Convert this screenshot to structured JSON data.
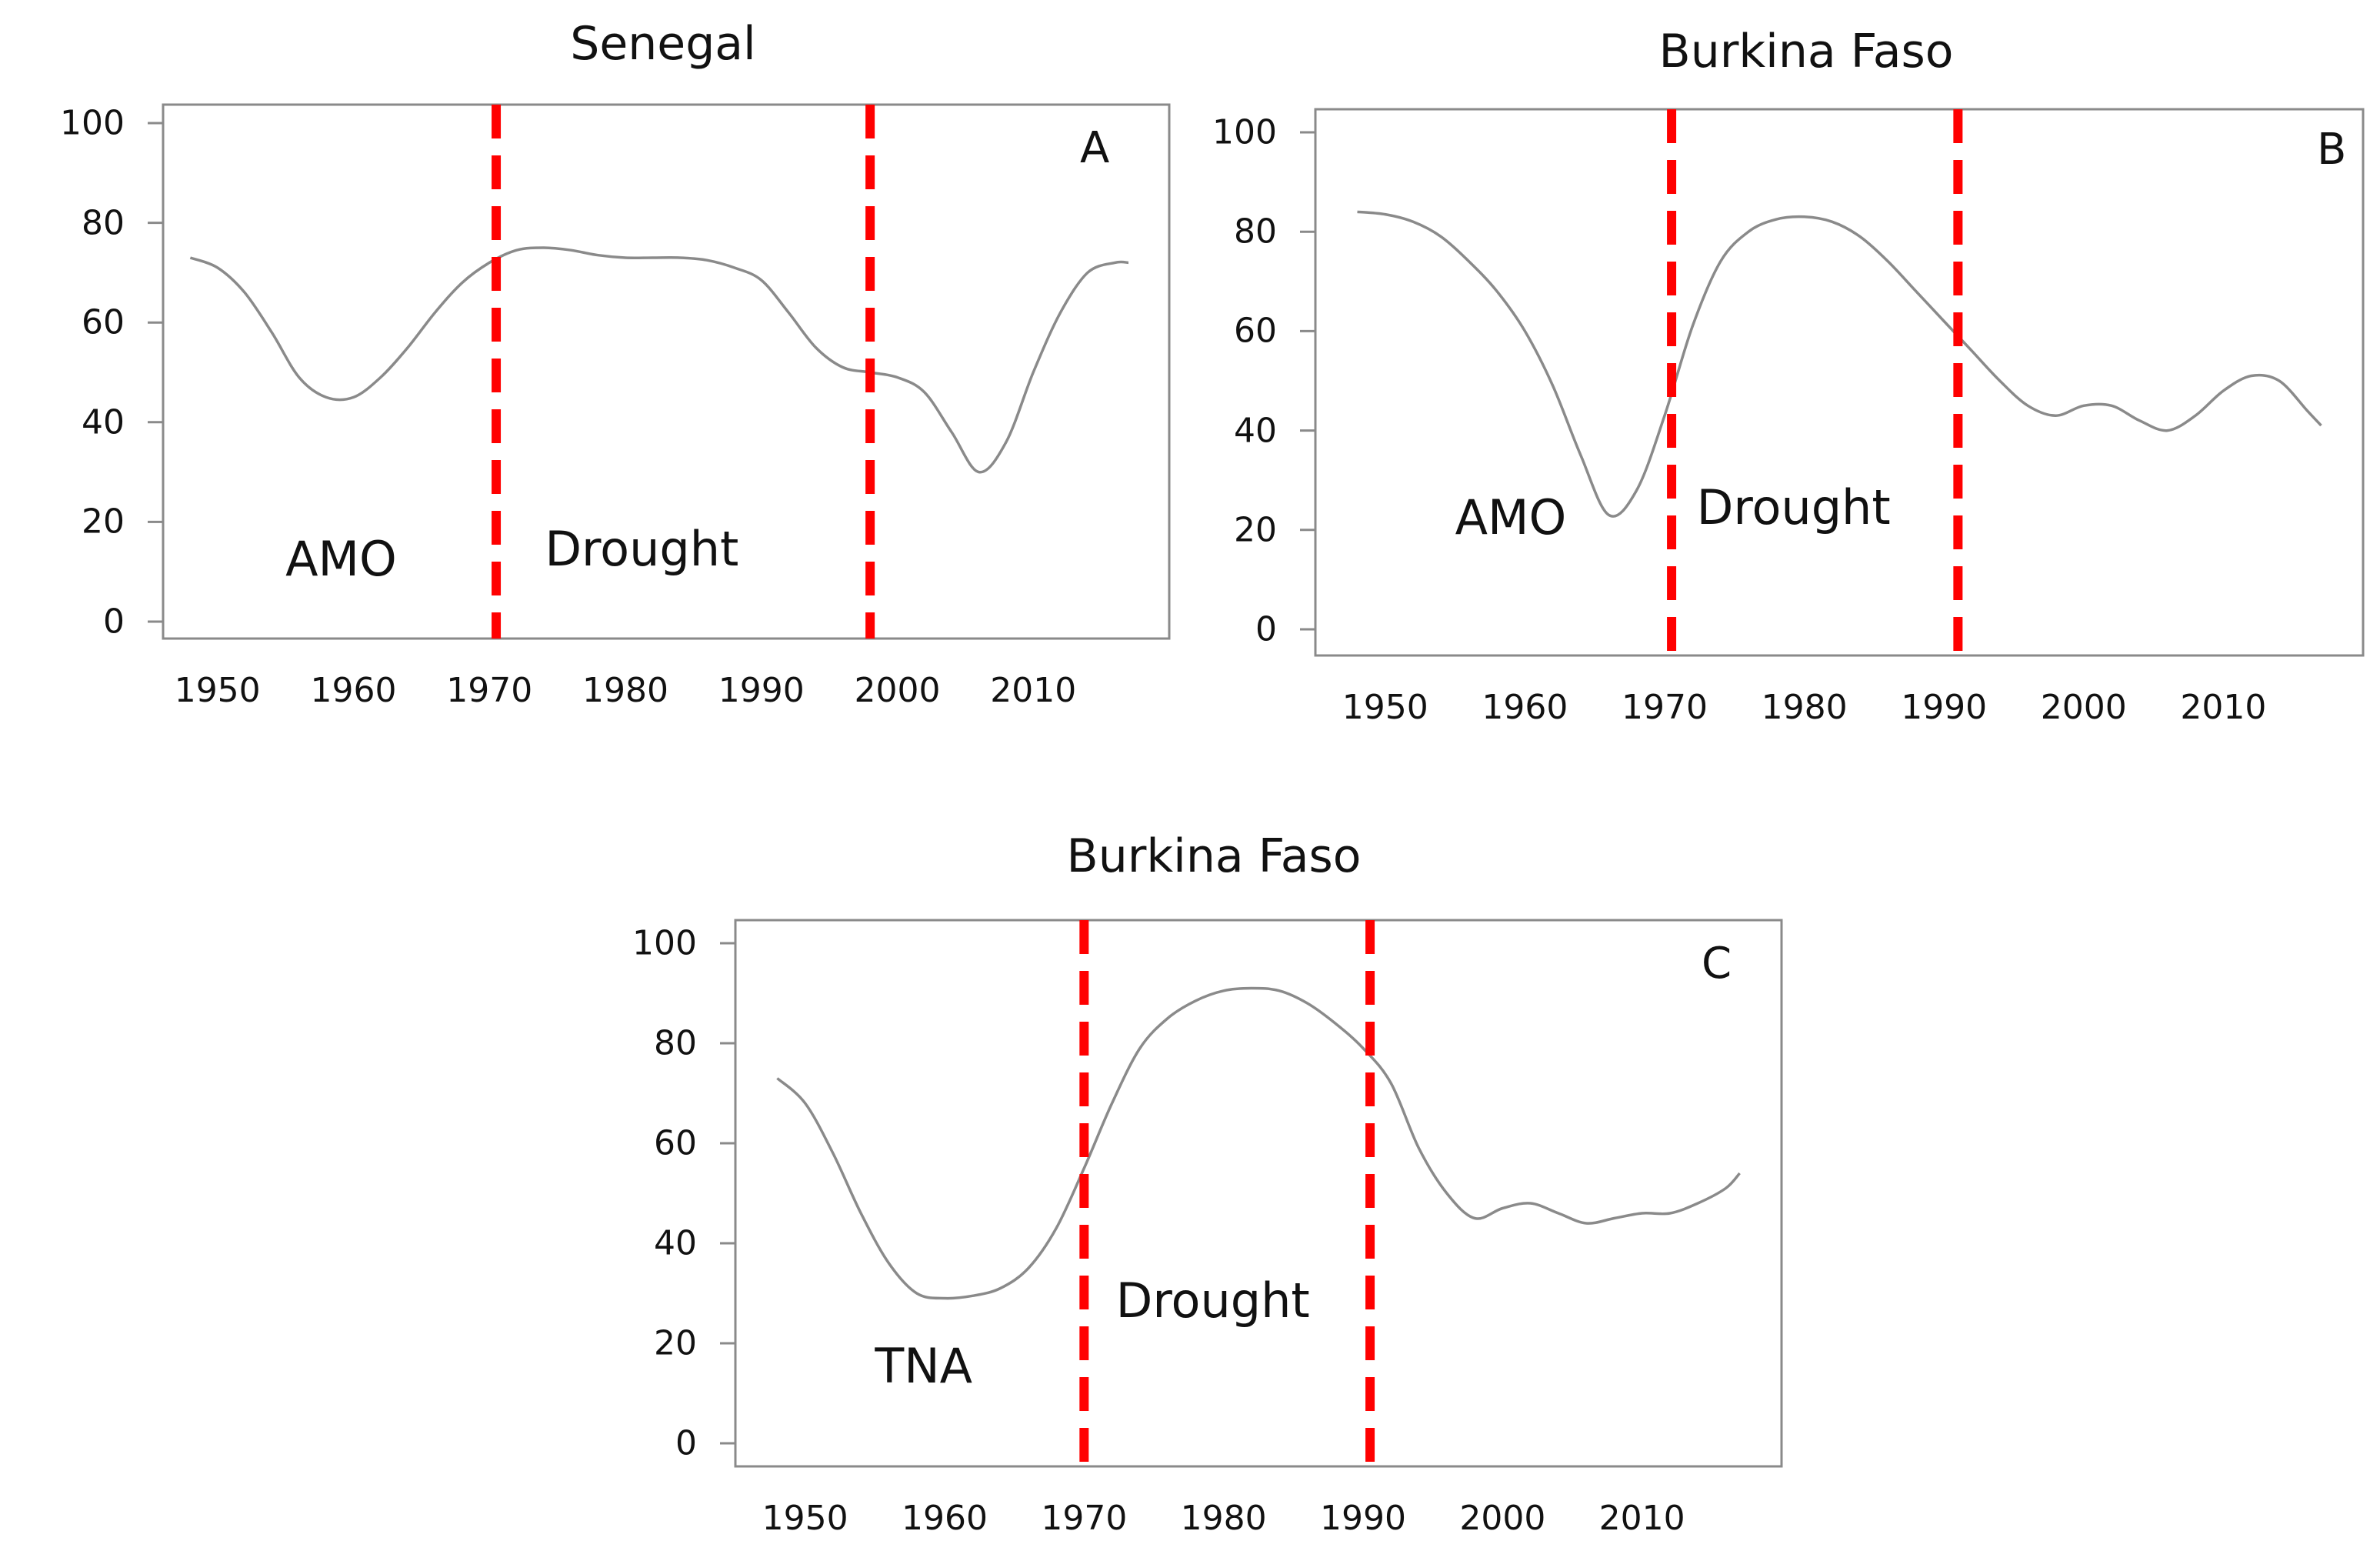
{
  "chart_data": [
    {
      "type": "line",
      "panel_letter": "A",
      "title": "Senegal",
      "xlabel": "",
      "ylabel": "",
      "ylim": [
        0,
        100
      ],
      "xlim": [
        1946,
        2020
      ],
      "yticks": [
        "0",
        "20",
        "40",
        "60",
        "80",
        "100"
      ],
      "xticks": [
        "1950",
        "1960",
        "1970",
        "1980",
        "1990",
        "2000",
        "2010"
      ],
      "x": [
        1948,
        1950,
        1952,
        1954,
        1956,
        1958,
        1960,
        1962,
        1964,
        1966,
        1968,
        1970,
        1972,
        1974,
        1976,
        1978,
        1980,
        1982,
        1984,
        1986,
        1988,
        1990,
        1992,
        1994,
        1996,
        1998,
        2000,
        2002,
        2004,
        2006,
        2008,
        2010,
        2012,
        2014,
        2016,
        2017
      ],
      "values": [
        73,
        71,
        66,
        58,
        49,
        45,
        45,
        49,
        55,
        62,
        68,
        72,
        74.5,
        75,
        74.5,
        73.5,
        73,
        73,
        73,
        72.5,
        71,
        68.5,
        62,
        55,
        51,
        50,
        49,
        46,
        38,
        30,
        36,
        50,
        62,
        70,
        72,
        72
      ],
      "drought_lines": [
        1970.5,
        1998
      ],
      "annotations": {
        "index": "AMO",
        "period": "Drought"
      },
      "annotation_pos": {
        "index": [
          1955,
          12
        ],
        "period": [
          1982,
          14
        ]
      }
    },
    {
      "type": "line",
      "panel_letter": "B",
      "title": "Burkina Faso",
      "xlabel": "",
      "ylabel": "",
      "ylim": [
        0,
        100
      ],
      "xlim": [
        1945,
        2020
      ],
      "yticks": [
        "0",
        "20",
        "40",
        "60",
        "80",
        "100"
      ],
      "xticks": [
        "1950",
        "1960",
        "1970",
        "1980",
        "1990",
        "2000",
        "2010"
      ],
      "x": [
        1948,
        1950,
        1952,
        1954,
        1956,
        1958,
        1960,
        1962,
        1964,
        1966,
        1968,
        1970,
        1972,
        1974,
        1976,
        1978,
        1980,
        1982,
        1984,
        1986,
        1988,
        1990,
        1992,
        1994,
        1996,
        1998,
        2000,
        2002,
        2004,
        2006,
        2008,
        2010,
        2012,
        2014,
        2016,
        2017
      ],
      "values": [
        84,
        83.5,
        82,
        79,
        74,
        68,
        60,
        49,
        35,
        23,
        28,
        43,
        61,
        74,
        80,
        82.5,
        83,
        82,
        79,
        74,
        68,
        62,
        56,
        50,
        45,
        43,
        45,
        45,
        42,
        40,
        43,
        48,
        51,
        50,
        44,
        41
      ],
      "drought_lines": [
        1970.5,
        1991
      ],
      "annotations": {
        "index": "AMO",
        "period": "Drought"
      },
      "annotation_pos": {
        "index": [
          1955,
          22
        ],
        "period": [
          1980,
          24
        ]
      }
    },
    {
      "type": "line",
      "panel_letter": "C",
      "title": "Burkina Faso",
      "xlabel": "",
      "ylabel": "",
      "ylim": [
        0,
        100
      ],
      "xlim": [
        1945,
        2020
      ],
      "yticks": [
        "0",
        "20",
        "40",
        "60",
        "80",
        "100"
      ],
      "xticks": [
        "1950",
        "1960",
        "1970",
        "1980",
        "1990",
        "2000",
        "2010"
      ],
      "x": [
        1948,
        1950,
        1952,
        1954,
        1956,
        1958,
        1960,
        1962,
        1964,
        1966,
        1968,
        1970,
        1972,
        1974,
        1976,
        1978,
        1980,
        1982,
        1984,
        1986,
        1988,
        1990,
        1992,
        1994,
        1996,
        1998,
        2000,
        2002,
        2004,
        2006,
        2008,
        2010,
        2012,
        2014,
        2016,
        2017
      ],
      "values": [
        73,
        68,
        58,
        46,
        36,
        30,
        29,
        29.5,
        31,
        35,
        43,
        55,
        68,
        79,
        85,
        88.5,
        90.5,
        91,
        90.5,
        88,
        84,
        79,
        72,
        59,
        50,
        45,
        47,
        48,
        46,
        44,
        45,
        46,
        46,
        48,
        51,
        54
      ],
      "drought_lines": [
        1970,
        1990.5
      ],
      "annotations": {
        "index": "TNA",
        "period": "Drought"
      },
      "annotation_pos": {
        "index": [
          1955,
          15
        ],
        "period": [
          1980,
          28
        ]
      }
    }
  ],
  "colors": {
    "line": "#8a8a8a",
    "frame": "#8a8a8a",
    "drought": "#ff0000",
    "text": "#111111"
  }
}
